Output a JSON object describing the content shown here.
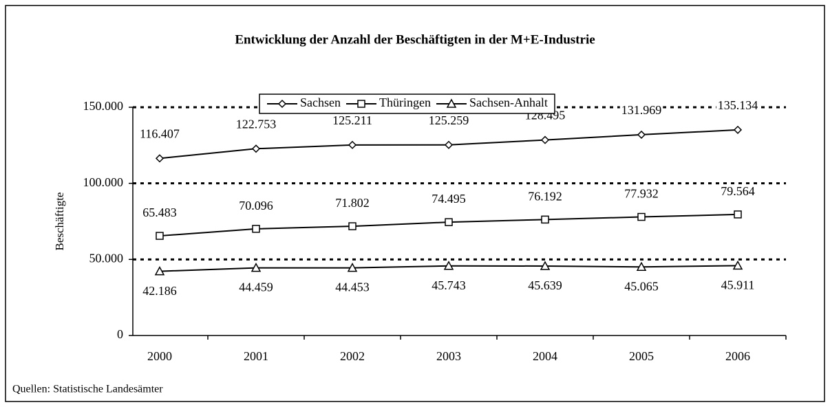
{
  "chart_data": {
    "type": "line",
    "title": "Entwicklung der Anzahl der Beschäftigten in der M+E-Industrie",
    "y_label": "Beschäftigte",
    "source": "Quellen: Statistische Landesämter",
    "categories": [
      "2000",
      "2001",
      "2002",
      "2003",
      "2004",
      "2005",
      "2006"
    ],
    "series": [
      {
        "name": "Sachsen",
        "color": "#000000",
        "marker": "diamond",
        "values": [
          116407,
          122753,
          125211,
          125259,
          128495,
          131969,
          135134
        ],
        "value_labels": [
          "116.407",
          "122.753",
          "125.211",
          "125.259",
          "128.495",
          "131.969",
          "135.134"
        ]
      },
      {
        "name": "Thüringen",
        "color": "#000000",
        "marker": "square",
        "values": [
          65483,
          70096,
          71802,
          74495,
          76192,
          77932,
          79564
        ],
        "value_labels": [
          "65.483",
          "70.096",
          "71.802",
          "74.495",
          "76.192",
          "77.932",
          "79.564"
        ]
      },
      {
        "name": "Sachsen-Anhalt",
        "color": "#000000",
        "marker": "triangle",
        "values": [
          42186,
          44459,
          44453,
          45743,
          45639,
          45065,
          45911
        ],
        "value_labels": [
          "42.186",
          "44.459",
          "44.453",
          "45.743",
          "45.639",
          "45.065",
          "45.911"
        ]
      }
    ],
    "ylim": [
      0,
      150000
    ],
    "yticks": [
      0,
      {
        "value": 50000,
        "label": "50.000"
      },
      {
        "value": 100000,
        "label": "100.000"
      },
      {
        "value": 150000,
        "label": "150.000"
      }
    ],
    "grid": true,
    "legend": "top"
  }
}
